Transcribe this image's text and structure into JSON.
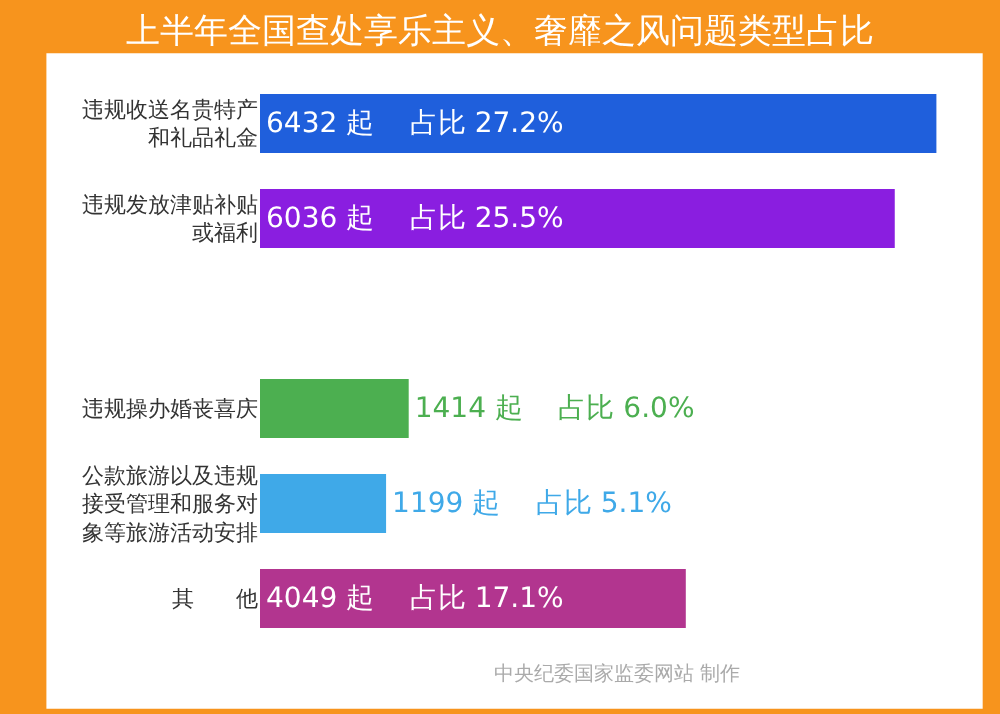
{
  "chart_data": {
    "type": "bar",
    "orientation": "horizontal",
    "title": "上半年全国查处享乐主义、奢靡之风问题类型占比",
    "categories": [
      "违规收送名贵特产和礼品礼金",
      "违规发放津贴补贴或福利",
      null,
      "违规操办婚丧喜庆",
      "公款旅游以及违规接受管理和服务对象等旅游活动安排",
      "其      他"
    ],
    "values": [
      6432,
      6036,
      null,
      1414,
      1199,
      4049
    ],
    "colors": [
      "#1f5fdc",
      "#8a1ee0",
      "#c0504d",
      "#4caf50",
      "#3fa9e8",
      "#b2358f"
    ],
    "value_labels": [
      "6432 起    占比 27.2%",
      "6036 起    占比 25.5%",
      null,
      "1414 起    占比 6.0%",
      "1199 起    占比 5.1%",
      "4049 起    占比 17.1%"
    ],
    "tick_labels": "y",
    "legend": false,
    "annotations": [
      "中央纪委国家监委网站 制作"
    ]
  }
}
